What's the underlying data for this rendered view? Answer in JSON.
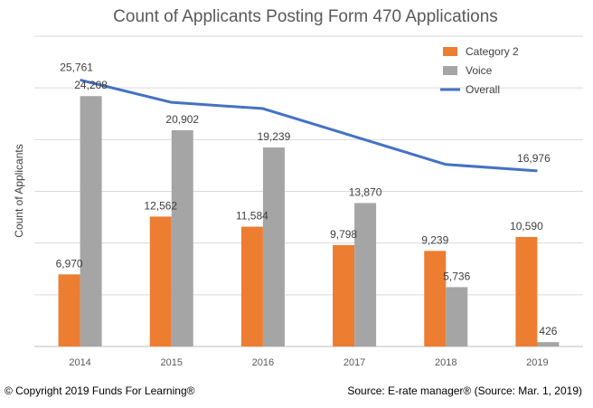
{
  "footer": {
    "copyright": "© Copyright 2019 Funds For Learning®",
    "source": "Source: E-rate manager® (Source: Mar. 1, 2019)"
  },
  "chart_data": {
    "type": "bar",
    "title": "Count of Applicants Posting Form 470 Applications",
    "xlabel": "",
    "ylabel": "Count of Applicants",
    "ylim": [
      0,
      30000
    ],
    "grid": true,
    "legend_position": "top-right",
    "categories": [
      "2014",
      "2015",
      "2016",
      "2017",
      "2018",
      "2019"
    ],
    "series": [
      {
        "name": "Category 2",
        "type": "bar",
        "color": "#ED7D31",
        "values": [
          6970,
          12562,
          11584,
          9798,
          9239,
          10590
        ],
        "labels": [
          "6,970",
          "12,562",
          "11,584",
          "9,798",
          "9,239",
          "10,590"
        ]
      },
      {
        "name": "Voice",
        "type": "bar",
        "color": "#A5A5A5",
        "values": [
          24208,
          20902,
          19239,
          13870,
          5736,
          426
        ],
        "labels": [
          "24,208",
          "20,902",
          "19,239",
          "13,870",
          "5,736",
          "426"
        ]
      },
      {
        "name": "Overall",
        "type": "line",
        "color": "#4472C4",
        "values": [
          25761,
          23600,
          23000,
          20300,
          17600,
          16976
        ],
        "labels": [
          "25,761",
          "",
          "",
          "",
          "",
          "16,976"
        ]
      }
    ]
  }
}
